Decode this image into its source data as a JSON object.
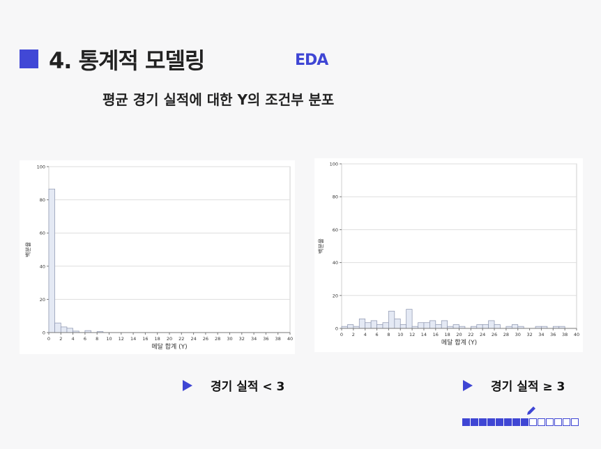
{
  "header": {
    "title": "4. 통계적 모델링",
    "tag": "EDA",
    "subtitle": "평균 경기 실적에 대한 Y의 조건부 분포",
    "accent_color": "#3f46d4"
  },
  "legend": {
    "left_label": "경기 실적 < 3",
    "right_label": "경기 실적 ≥ 3",
    "marker_icon": "triangle-right-icon"
  },
  "progress": {
    "filled": 8,
    "total": 14,
    "icon": "pencil-icon"
  },
  "chart_data": [
    {
      "type": "bar",
      "xlabel": "메달 합계 (Y)",
      "ylabel": "백분율",
      "xlim": [
        0,
        40
      ],
      "ylim": [
        0,
        100
      ],
      "xticks": [
        0,
        2,
        4,
        6,
        8,
        10,
        12,
        14,
        16,
        18,
        20,
        22,
        24,
        26,
        28,
        30,
        32,
        34,
        36,
        38,
        40
      ],
      "yticks": [
        0,
        20,
        40,
        60,
        80,
        100
      ],
      "grid": true,
      "bin_width": 1,
      "x": [
        0,
        1,
        2,
        3,
        4,
        6,
        8
      ],
      "values": [
        86.5,
        5.8,
        3.4,
        2.6,
        0.9,
        1.2,
        0.6
      ]
    },
    {
      "type": "bar",
      "xlabel": "메달 합계 (Y)",
      "ylabel": "백분율",
      "xlim": [
        0,
        40
      ],
      "ylim": [
        0,
        100
      ],
      "xticks": [
        0,
        2,
        4,
        6,
        8,
        10,
        12,
        14,
        16,
        18,
        20,
        22,
        24,
        26,
        28,
        30,
        32,
        34,
        36,
        38,
        40
      ],
      "yticks": [
        0,
        20,
        40,
        60,
        80,
        100
      ],
      "grid": true,
      "bin_width": 1,
      "x": [
        0,
        1,
        2,
        3,
        4,
        5,
        6,
        7,
        8,
        9,
        10,
        11,
        12,
        13,
        14,
        15,
        16,
        17,
        18,
        19,
        20,
        22,
        23,
        24,
        25,
        26,
        28,
        29,
        30,
        33,
        34,
        36,
        37
      ],
      "values": [
        1.2,
        2.3,
        1.2,
        5.8,
        3.5,
        4.7,
        2.3,
        3.5,
        10.5,
        5.8,
        2.3,
        11.6,
        1.2,
        3.5,
        3.5,
        4.7,
        2.3,
        4.7,
        1.2,
        2.3,
        1.2,
        1.2,
        2.3,
        2.3,
        4.7,
        2.3,
        1.2,
        2.3,
        1.2,
        1.2,
        1.2,
        1.2,
        1.2
      ]
    }
  ]
}
